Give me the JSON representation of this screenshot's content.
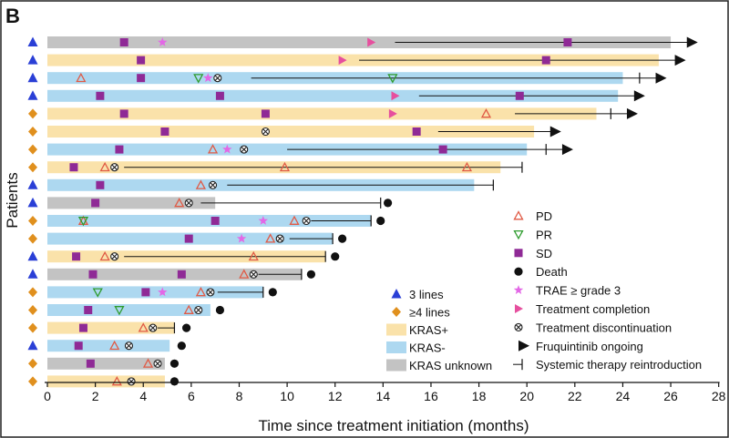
{
  "panel_letter": "B",
  "chart_data": {
    "type": "swimmer",
    "title": "",
    "xlabel": "Time since treatment initiation (months)",
    "ylabel": "Patients",
    "xlim": [
      0,
      28
    ],
    "xticks": [
      "0",
      "2",
      "4",
      "6",
      "8",
      "10",
      "12",
      "14",
      "16",
      "18",
      "20",
      "22",
      "24",
      "26",
      "28"
    ],
    "colors": {
      "kras_pos": "#fae2aa",
      "kras_neg": "#add8f0",
      "kras_unknown": "#c3c3c3",
      "lines3": "#2a3fd6",
      "lines4": "#e0901e",
      "pd": "#e05a45",
      "pr": "#2e9c2e",
      "sd": "#8f2a96",
      "trae": "#e368e6",
      "completion": "#e64f9e",
      "ink": "#111111"
    },
    "patients": [
      {
        "lines": "3",
        "kras": "unknown",
        "bar_end": 26.0,
        "ongoing": true,
        "reintro": null,
        "death": null,
        "line_from": 14.5,
        "events": {
          "pd": [],
          "pr": [],
          "sd": [
            3.2,
            21.7
          ],
          "trae": [
            4.8
          ],
          "completion": [
            13.5
          ],
          "disc": []
        }
      },
      {
        "lines": "3",
        "kras": "pos",
        "bar_end": 25.5,
        "ongoing": true,
        "reintro": null,
        "death": null,
        "line_from": 13.0,
        "events": {
          "pd": [],
          "pr": [],
          "sd": [
            3.9,
            20.8
          ],
          "trae": [],
          "completion": [
            12.3
          ],
          "disc": []
        }
      },
      {
        "lines": "3",
        "kras": "neg",
        "bar_end": 24.0,
        "ongoing": true,
        "reintro": 24.7,
        "death": null,
        "line_from": 8.5,
        "events": {
          "pd": [
            1.4
          ],
          "pr": [
            6.3,
            14.4
          ],
          "sd": [
            3.9
          ],
          "trae": [
            6.7
          ],
          "completion": [],
          "disc": [
            7.1
          ]
        }
      },
      {
        "lines": "3",
        "kras": "neg",
        "bar_end": 23.8,
        "ongoing": true,
        "reintro": null,
        "death": null,
        "line_from": 15.5,
        "events": {
          "pd": [],
          "pr": [],
          "sd": [
            2.2,
            7.2,
            19.7
          ],
          "trae": [],
          "completion": [
            14.5
          ],
          "disc": []
        }
      },
      {
        "lines": "4",
        "kras": "pos",
        "bar_end": 22.9,
        "ongoing": true,
        "reintro": 23.5,
        "death": null,
        "line_from": 19.5,
        "events": {
          "pd": [
            18.3
          ],
          "pr": [],
          "sd": [
            3.2,
            9.1
          ],
          "trae": [],
          "completion": [
            14.4
          ],
          "disc": []
        }
      },
      {
        "lines": "4",
        "kras": "pos",
        "bar_end": 20.3,
        "ongoing": true,
        "reintro": null,
        "death": null,
        "line_from": 16.3,
        "events": {
          "pd": [],
          "pr": [],
          "sd": [
            4.9,
            15.4
          ],
          "trae": [],
          "completion": [],
          "disc": [
            9.1
          ]
        }
      },
      {
        "lines": "4",
        "kras": "neg",
        "bar_end": 20.0,
        "ongoing": true,
        "reintro": 20.8,
        "death": null,
        "line_from": 10.0,
        "events": {
          "pd": [
            6.9
          ],
          "pr": [],
          "sd": [
            3.0,
            16.5
          ],
          "trae": [
            7.5
          ],
          "completion": [],
          "disc": [
            8.2
          ]
        }
      },
      {
        "lines": "4",
        "kras": "pos",
        "bar_end": 18.9,
        "ongoing": false,
        "reintro": 19.8,
        "death": null,
        "line_from": 3.2,
        "events": {
          "pd": [
            2.4,
            9.9,
            17.5
          ],
          "pr": [],
          "sd": [
            1.1
          ],
          "trae": [],
          "completion": [],
          "disc": [
            2.8
          ]
        }
      },
      {
        "lines": "3",
        "kras": "neg",
        "bar_end": 17.8,
        "ongoing": false,
        "reintro": 18.6,
        "death": null,
        "line_from": 7.5,
        "events": {
          "pd": [
            6.4
          ],
          "pr": [],
          "sd": [
            2.2
          ],
          "trae": [],
          "completion": [],
          "disc": [
            6.9
          ]
        }
      },
      {
        "lines": "3",
        "kras": "unknown",
        "bar_end": 7.0,
        "ongoing": false,
        "reintro": 13.9,
        "death": 14.2,
        "line_from": 6.4,
        "events": {
          "pd": [
            5.5
          ],
          "pr": [],
          "sd": [
            2.0
          ],
          "trae": [],
          "completion": [],
          "disc": [
            5.9
          ]
        }
      },
      {
        "lines": "4",
        "kras": "neg",
        "bar_end": 13.5,
        "ongoing": false,
        "reintro": 13.5,
        "death": 13.9,
        "line_from": 11.0,
        "events": {
          "pd": [
            1.5,
            10.3
          ],
          "pr": [
            1.5
          ],
          "sd": [
            7.0
          ],
          "trae": [
            9.0
          ],
          "completion": [],
          "disc": [
            10.8
          ]
        }
      },
      {
        "lines": "4",
        "kras": "neg",
        "bar_end": 11.9,
        "ongoing": false,
        "reintro": 11.9,
        "death": 12.3,
        "line_from": 10.1,
        "events": {
          "pd": [
            9.3
          ],
          "pr": [],
          "sd": [
            5.9
          ],
          "trae": [
            8.1
          ],
          "completion": [],
          "disc": [
            9.7
          ]
        }
      },
      {
        "lines": "3",
        "kras": "pos",
        "bar_end": 11.6,
        "ongoing": false,
        "reintro": 11.6,
        "death": 12.0,
        "line_from": 3.2,
        "events": {
          "pd": [
            2.4,
            8.6
          ],
          "pr": [],
          "sd": [
            1.2
          ],
          "trae": [],
          "completion": [],
          "disc": [
            2.8
          ]
        }
      },
      {
        "lines": "3",
        "kras": "unknown",
        "bar_end": 10.6,
        "ongoing": false,
        "reintro": 10.6,
        "death": 11.0,
        "line_from": 8.8,
        "events": {
          "pd": [
            8.2
          ],
          "pr": [],
          "sd": [
            1.9,
            5.6
          ],
          "trae": [],
          "completion": [],
          "disc": [
            8.6
          ]
        }
      },
      {
        "lines": "4",
        "kras": "neg",
        "bar_end": 9.0,
        "ongoing": false,
        "reintro": 9.0,
        "death": 9.4,
        "line_from": 7.1,
        "events": {
          "pd": [
            6.4
          ],
          "pr": [
            2.1
          ],
          "sd": [
            4.1
          ],
          "trae": [
            4.8
          ],
          "completion": [],
          "disc": [
            6.8
          ]
        }
      },
      {
        "lines": "4",
        "kras": "neg",
        "bar_end": 6.8,
        "ongoing": false,
        "reintro": null,
        "death": 7.2,
        "line_from": null,
        "events": {
          "pd": [
            5.9
          ],
          "pr": [
            3.0
          ],
          "sd": [
            1.7
          ],
          "trae": [],
          "completion": [],
          "disc": [
            6.3
          ]
        }
      },
      {
        "lines": "4",
        "kras": "pos",
        "bar_end": 5.3,
        "ongoing": false,
        "reintro": 5.3,
        "death": 5.8,
        "line_from": 4.6,
        "events": {
          "pd": [
            4.0
          ],
          "pr": [],
          "sd": [
            1.5
          ],
          "trae": [],
          "completion": [],
          "disc": [
            4.4
          ]
        }
      },
      {
        "lines": "3",
        "kras": "neg",
        "bar_end": 5.1,
        "ongoing": false,
        "reintro": null,
        "death": 5.6,
        "line_from": null,
        "events": {
          "pd": [
            2.8
          ],
          "pr": [],
          "sd": [
            1.3
          ],
          "trae": [],
          "completion": [],
          "disc": [
            3.4
          ]
        }
      },
      {
        "lines": "4",
        "kras": "unknown",
        "bar_end": 4.9,
        "ongoing": false,
        "reintro": null,
        "death": 5.3,
        "line_from": null,
        "events": {
          "pd": [
            4.2
          ],
          "pr": [],
          "sd": [
            1.8
          ],
          "trae": [],
          "completion": [],
          "disc": [
            4.6
          ]
        }
      },
      {
        "lines": "4",
        "kras": "pos",
        "bar_end": 4.9,
        "ongoing": false,
        "reintro": null,
        "death": 5.3,
        "line_from": null,
        "events": {
          "pd": [
            2.9
          ],
          "pr": [],
          "sd": [],
          "trae": [],
          "completion": [],
          "disc": [
            3.5
          ]
        }
      }
    ],
    "legend_left": [
      {
        "key": "lines3",
        "label": "3 lines"
      },
      {
        "key": "lines4",
        "label": "≥4 lines"
      },
      {
        "key": "kras_pos",
        "label": "KRAS+"
      },
      {
        "key": "kras_neg",
        "label": "KRAS-"
      },
      {
        "key": "kras_unknown",
        "label": "KRAS unknown"
      }
    ],
    "legend_right": [
      {
        "key": "pd",
        "label": "PD"
      },
      {
        "key": "pr",
        "label": "PR"
      },
      {
        "key": "sd",
        "label": "SD"
      },
      {
        "key": "death",
        "label": "Death"
      },
      {
        "key": "trae",
        "label": "TRAE ≥ grade 3"
      },
      {
        "key": "completion",
        "label": "Treatment completion"
      },
      {
        "key": "disc",
        "label": "Treatment discontinuation"
      },
      {
        "key": "ongoing",
        "label": "Fruquintinib ongoing"
      },
      {
        "key": "reintro",
        "label": "Systemic therapy reintroduction"
      }
    ]
  }
}
